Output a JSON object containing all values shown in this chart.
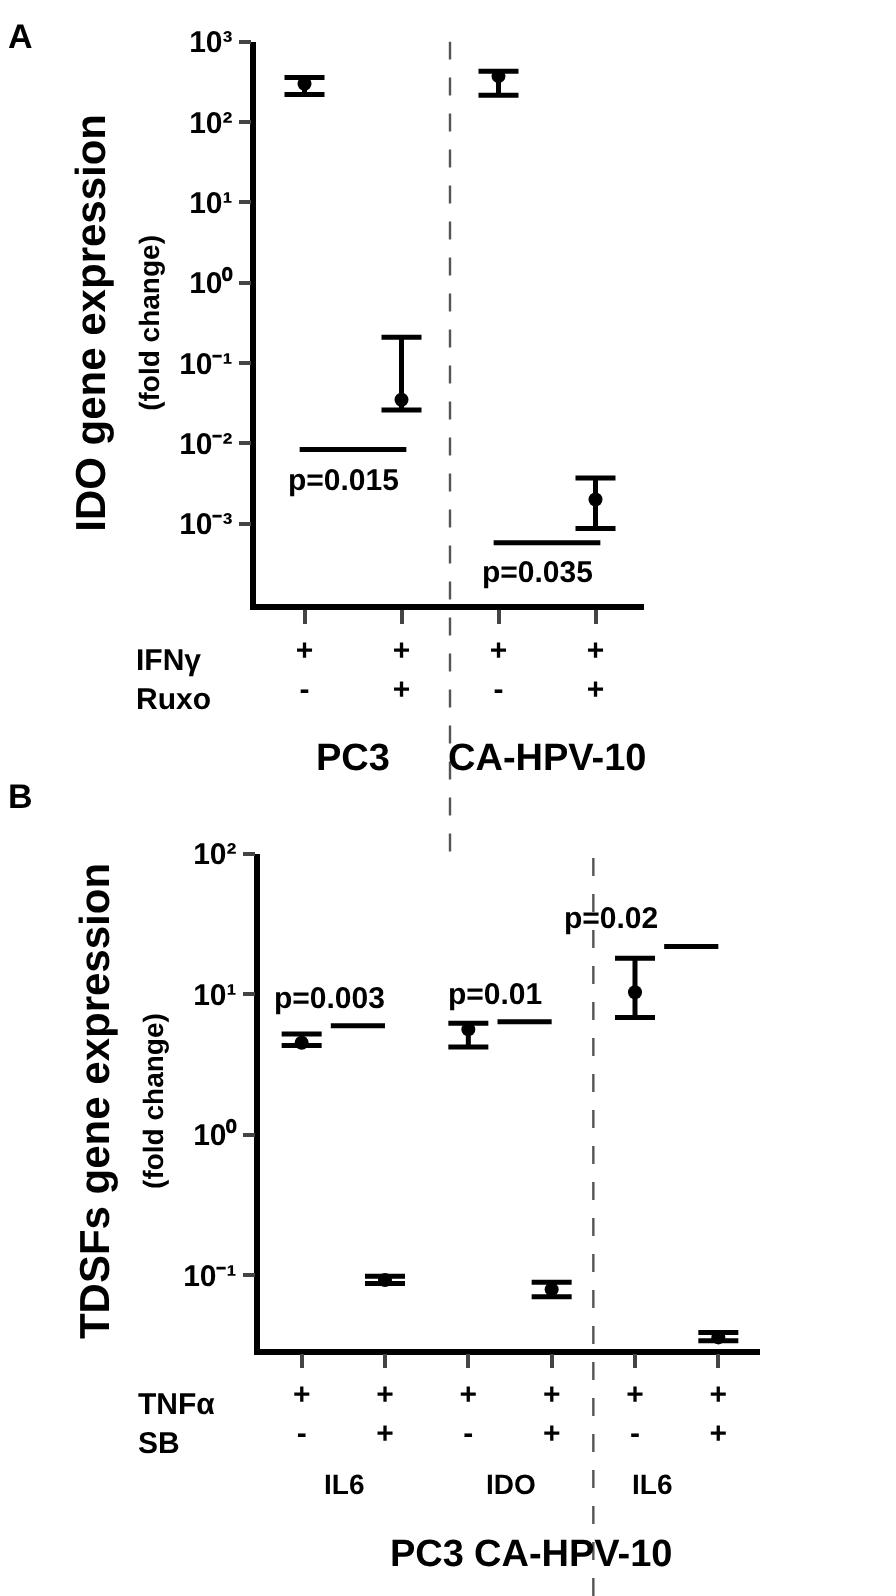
{
  "chart_data": [
    {
      "type": "scatter",
      "title": "A",
      "ylabel": "IDO gene expression\n(fold change)",
      "xlabel": "IFNγ\nRuxo",
      "categories": [
        "+\n-",
        "+\n+",
        "+\n-",
        "+\n+"
      ],
      "series": [
        {
          "color": "#000000",
          "values": [
            300,
            0.035,
            375,
            0.002
          ],
          "errors": [
            [
              220,
              360
            ],
            [
              0.026,
              0.21
            ],
            [
              215,
              430
            ],
            [
              0.00087,
              0.0037
            ]
          ]
        }
      ],
      "log": true,
      "ylim": [
        0.0001,
        1000
      ],
      "marker": "circle",
      "yticks": [
        {
          "value": 0.001,
          "label": "10⁻³"
        },
        {
          "value": 0.01,
          "label": "10⁻²"
        },
        {
          "value": 0.1,
          "label": "10⁻¹"
        },
        {
          "value": 1,
          "label": "10⁰"
        },
        {
          "value": 10,
          "label": "10¹"
        },
        {
          "value": 100,
          "label": "10²"
        },
        {
          "value": 1000,
          "label": "10³"
        }
      ],
      "annotations": [
        "p=0.015",
        "p=0.035",
        "PC3",
        "CA-HPV-10"
      ]
    },
    {
      "type": "scatter",
      "title": "B",
      "ylabel": "TDSFs gene expression\n(fold change)",
      "xlabel": "TNFα\nSB",
      "categories": [
        "+\n-",
        "+\n+",
        "+\n-",
        "+\n+",
        "+\n-",
        "+\n+"
      ],
      "series": [
        {
          "color": "#000000",
          "values": [
            4.5,
            0.092,
            5.6,
            0.079,
            10.3,
            0.036
          ],
          "errors": [
            [
              4.3,
              5.2
            ],
            [
              0.087,
              0.098
            ],
            [
              4.2,
              6.2
            ],
            [
              0.07,
              0.089
            ],
            [
              6.8,
              18
            ],
            [
              0.034,
              0.039
            ]
          ]
        }
      ],
      "log": true,
      "ylim": [
        0.03,
        100
      ],
      "marker": "circle",
      "yticks": [
        {
          "value": 0.1,
          "label": "10⁻¹"
        },
        {
          "value": 1,
          "label": "10⁰"
        },
        {
          "value": 10,
          "label": "10¹"
        },
        {
          "value": 100,
          "label": "10²"
        }
      ],
      "annotations": [
        "p=0.003",
        "p=0.01",
        "p=0.02",
        "IL6",
        "IDO",
        "IL6",
        "PC3",
        "CA-HPV-10"
      ]
    }
  ]
}
